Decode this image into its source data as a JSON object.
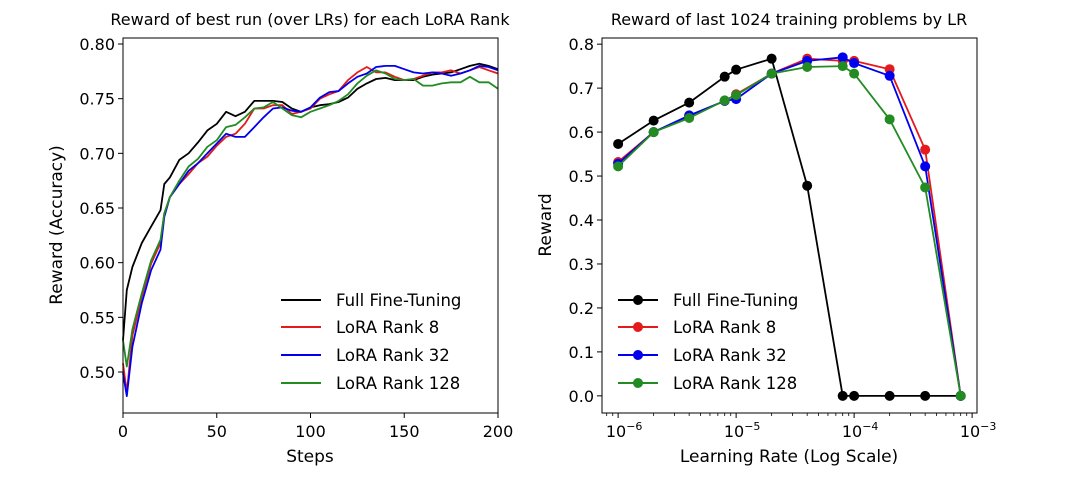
{
  "chart_data": [
    {
      "type": "line",
      "title": "Reward of best run (over LRs) for each LoRA Rank",
      "xlabel": "Steps",
      "ylabel": "Reward (Accuracy)",
      "xlim": [
        0,
        200
      ],
      "ylim": [
        0.4625,
        0.8055
      ],
      "xticks": [
        0,
        50,
        100,
        150,
        200
      ],
      "xtick_labels": [
        "0",
        "50",
        "100",
        "150",
        "200"
      ],
      "yticks": [
        0.5,
        0.55,
        0.6,
        0.65,
        0.7,
        0.75,
        0.8
      ],
      "ytick_labels": [
        "0.50",
        "0.55",
        "0.60",
        "0.65",
        "0.70",
        "0.75",
        "0.80"
      ],
      "grid": false,
      "legend_position": "lower-right",
      "x": [
        0,
        2,
        5,
        10,
        15,
        20,
        22,
        25,
        30,
        35,
        40,
        45,
        50,
        55,
        60,
        65,
        70,
        75,
        80,
        85,
        90,
        95,
        100,
        105,
        110,
        115,
        120,
        125,
        130,
        135,
        140,
        145,
        150,
        155,
        160,
        165,
        170,
        175,
        180,
        185,
        190,
        195,
        200
      ],
      "series": [
        {
          "name": "Full Fine-Tuning",
          "color": "#000000",
          "values": [
            0.529,
            0.575,
            0.596,
            0.618,
            0.633,
            0.648,
            0.672,
            0.678,
            0.694,
            0.7,
            0.71,
            0.721,
            0.727,
            0.738,
            0.734,
            0.738,
            0.748,
            0.748,
            0.748,
            0.747,
            0.741,
            0.738,
            0.742,
            0.744,
            0.745,
            0.747,
            0.751,
            0.759,
            0.764,
            0.768,
            0.769,
            0.767,
            0.767,
            0.767,
            0.77,
            0.772,
            0.773,
            0.774,
            0.777,
            0.78,
            0.782,
            0.78,
            0.777
          ]
        },
        {
          "name": "LoRA Rank 8",
          "color": "#e41a1c",
          "values": [
            0.508,
            0.481,
            0.533,
            0.569,
            0.599,
            0.618,
            0.645,
            0.66,
            0.672,
            0.681,
            0.691,
            0.697,
            0.707,
            0.715,
            0.718,
            0.727,
            0.741,
            0.741,
            0.744,
            0.744,
            0.736,
            0.738,
            0.741,
            0.75,
            0.754,
            0.757,
            0.767,
            0.774,
            0.779,
            0.774,
            0.774,
            0.77,
            0.767,
            0.768,
            0.771,
            0.774,
            0.774,
            0.776,
            0.773,
            0.776,
            0.779,
            0.776,
            0.773
          ]
        },
        {
          "name": "LoRA Rank 32",
          "color": "#0000ee",
          "values": [
            0.499,
            0.478,
            0.523,
            0.563,
            0.593,
            0.612,
            0.642,
            0.66,
            0.672,
            0.684,
            0.691,
            0.7,
            0.709,
            0.718,
            0.715,
            0.715,
            0.724,
            0.733,
            0.741,
            0.742,
            0.739,
            0.738,
            0.742,
            0.751,
            0.756,
            0.757,
            0.764,
            0.77,
            0.773,
            0.779,
            0.78,
            0.78,
            0.777,
            0.774,
            0.773,
            0.774,
            0.773,
            0.771,
            0.773,
            0.776,
            0.78,
            0.779,
            0.776
          ]
        },
        {
          "name": "LoRA Rank 128",
          "color": "#228b22",
          "values": [
            0.529,
            0.505,
            0.539,
            0.572,
            0.602,
            0.621,
            0.645,
            0.66,
            0.675,
            0.688,
            0.695,
            0.706,
            0.712,
            0.724,
            0.726,
            0.733,
            0.741,
            0.742,
            0.747,
            0.741,
            0.735,
            0.733,
            0.738,
            0.741,
            0.744,
            0.748,
            0.754,
            0.764,
            0.771,
            0.776,
            0.773,
            0.768,
            0.767,
            0.768,
            0.762,
            0.762,
            0.764,
            0.765,
            0.765,
            0.77,
            0.765,
            0.765,
            0.759
          ]
        }
      ]
    },
    {
      "type": "line",
      "title": "Reward of last 1024 training problems by LR",
      "xlabel": "Learning Rate (Log Scale)",
      "ylabel": "Reward",
      "xscale": "log",
      "xlim": [
        7.3e-07,
        0.0011
      ],
      "ylim": [
        -0.039,
        0.814
      ],
      "xticks": [
        1e-06,
        1e-05,
        0.0001,
        0.001
      ],
      "xtick_labels": [
        {
          "base": "10",
          "exp": "−6"
        },
        {
          "base": "10",
          "exp": "−5"
        },
        {
          "base": "10",
          "exp": "−4"
        },
        {
          "base": "10",
          "exp": "−3"
        }
      ],
      "yticks": [
        0.0,
        0.1,
        0.2,
        0.3,
        0.4,
        0.5,
        0.6,
        0.7,
        0.8
      ],
      "ytick_labels": [
        "0.0",
        "0.1",
        "0.2",
        "0.3",
        "0.4",
        "0.5",
        "0.6",
        "0.7",
        "0.8"
      ],
      "grid": false,
      "markers": true,
      "legend_position": "lower-left",
      "x": [
        1e-06,
        2e-06,
        4e-06,
        8e-06,
        1e-05,
        2e-05,
        4e-05,
        8e-05,
        0.0001,
        0.0002,
        0.0004,
        0.0008
      ],
      "series": [
        {
          "name": "Full Fine-Tuning",
          "color": "#000000",
          "values": [
            0.573,
            0.626,
            0.667,
            0.726,
            0.742,
            0.767,
            0.478,
            0.0,
            0.0,
            0.0,
            0.0,
            0.0
          ]
        },
        {
          "name": "LoRA Rank 8",
          "color": "#e41a1c",
          "values": [
            0.532,
            0.6,
            0.637,
            0.671,
            0.686,
            0.733,
            0.767,
            0.762,
            0.762,
            0.743,
            0.56,
            0.0
          ]
        },
        {
          "name": "LoRA Rank 32",
          "color": "#0000ee",
          "values": [
            0.528,
            0.6,
            0.638,
            0.671,
            0.675,
            0.733,
            0.762,
            0.77,
            0.757,
            0.728,
            0.522,
            0.0
          ]
        },
        {
          "name": "LoRA Rank 128",
          "color": "#228b22",
          "values": [
            0.522,
            0.6,
            0.632,
            0.672,
            0.684,
            0.733,
            0.748,
            0.75,
            0.733,
            0.629,
            0.474,
            0.0
          ]
        }
      ]
    }
  ]
}
